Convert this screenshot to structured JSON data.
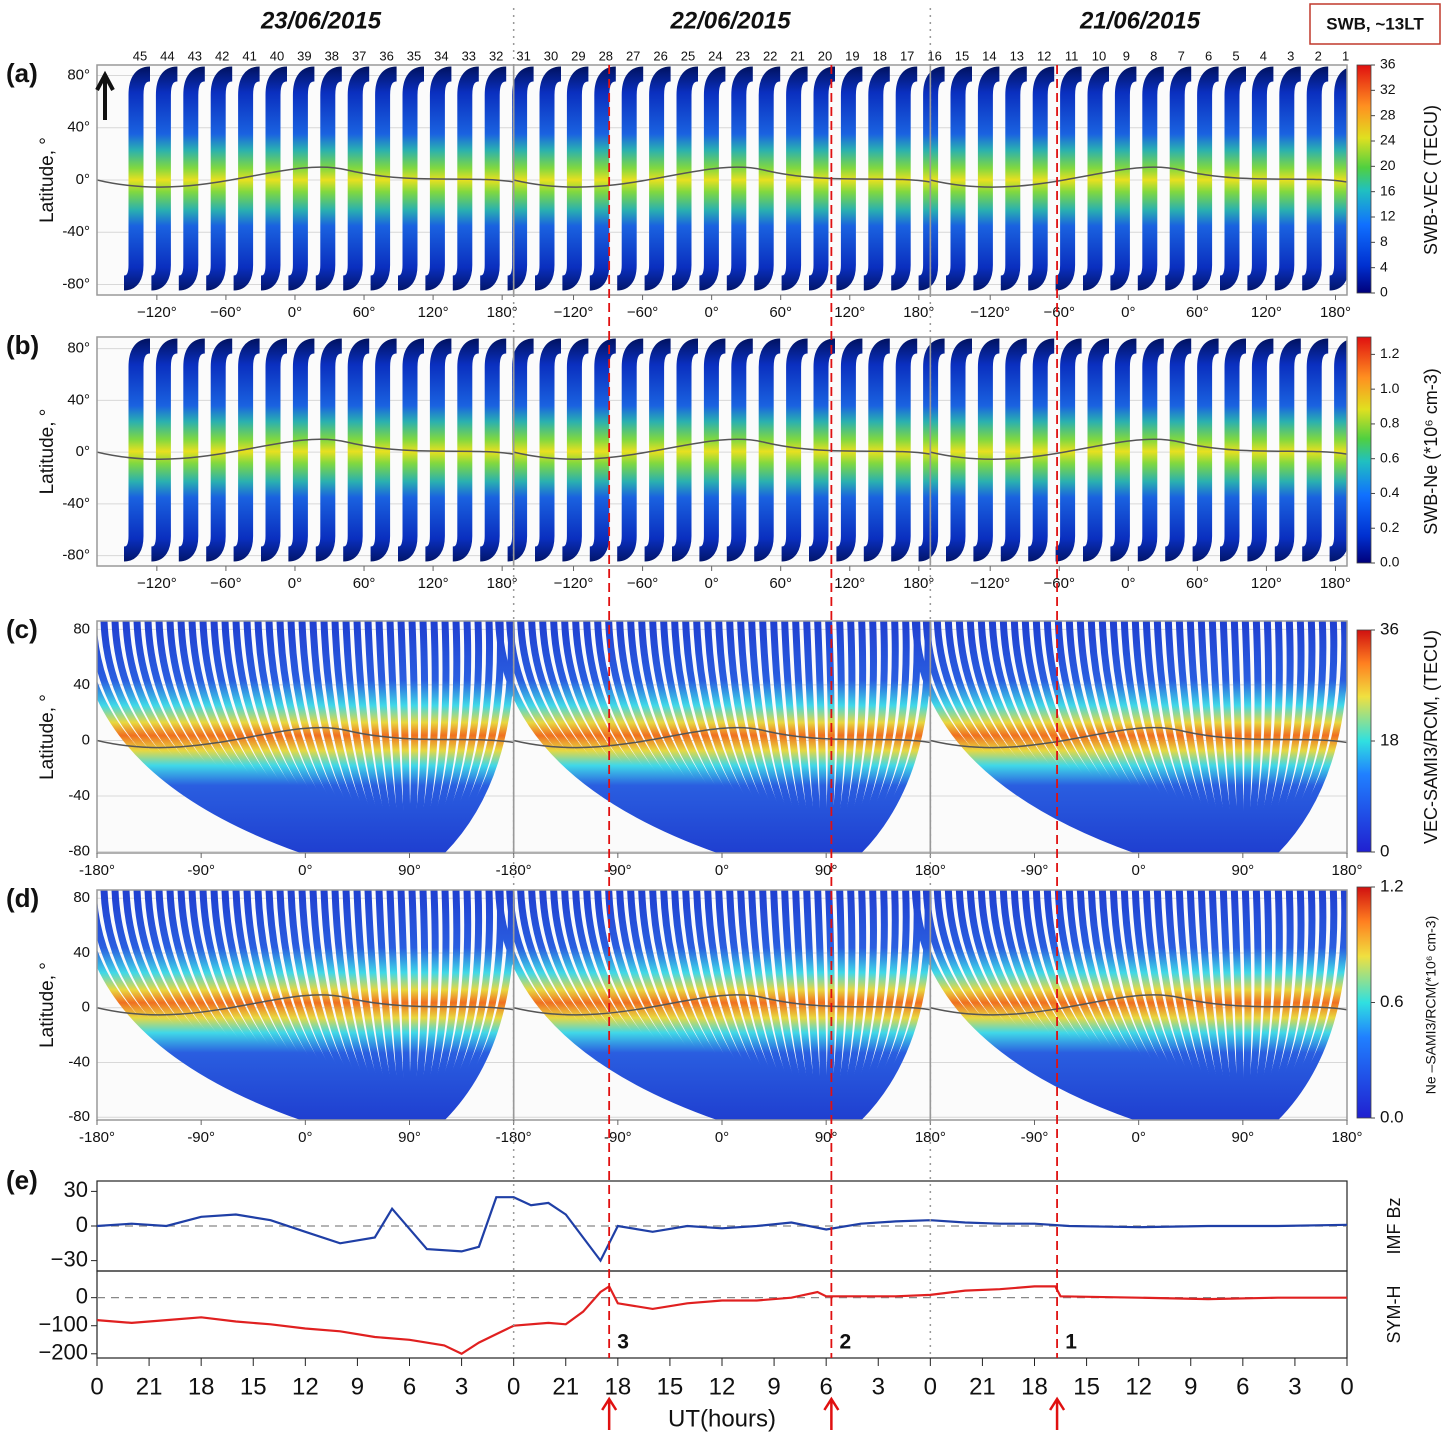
{
  "header": {
    "dates": [
      "23/06/2015",
      "22/06/2015",
      "21/06/2015"
    ],
    "note": "SWB, ~13LT",
    "orbits": [
      45,
      44,
      43,
      42,
      41,
      40,
      39,
      38,
      37,
      36,
      35,
      34,
      33,
      32,
      31,
      30,
      29,
      28,
      27,
      26,
      25,
      24,
      23,
      22,
      21,
      20,
      19,
      18,
      17,
      16,
      15,
      14,
      13,
      12,
      11,
      10,
      9,
      8,
      7,
      6,
      5,
      4,
      3,
      2,
      1
    ]
  },
  "chart_data": [
    {
      "type": "swath-map",
      "panel": "(a)",
      "ylabel": "Latitude, °",
      "ylim": [
        -88,
        88
      ],
      "yticks": [
        {
          "value": 80,
          "label": "80°"
        },
        {
          "value": 40,
          "label": "40°"
        },
        {
          "value": 0,
          "label": "0°"
        },
        {
          "value": -40,
          "label": "-40°"
        },
        {
          "value": -80,
          "label": "-80°"
        }
      ],
      "maps": [
        {
          "xlim": [
            -172,
            190
          ],
          "xticks": [
            {
              "value": -120,
              "label": "−120°"
            },
            {
              "value": -60,
              "label": "−60°"
            },
            {
              "value": 0,
              "label": "0°"
            },
            {
              "value": 60,
              "label": "60°"
            },
            {
              "value": 120,
              "label": "120°"
            },
            {
              "value": 180,
              "label": "180°"
            }
          ]
        },
        {
          "xlim": [
            -172,
            190
          ],
          "xticks": [
            {
              "value": -120,
              "label": "−120°"
            },
            {
              "value": -60,
              "label": "−60°"
            },
            {
              "value": 0,
              "label": "0°"
            },
            {
              "value": 60,
              "label": "60°"
            },
            {
              "value": 120,
              "label": "120°"
            },
            {
              "value": 180,
              "label": "180°"
            }
          ]
        },
        {
          "xlim": [
            -172,
            190
          ],
          "xticks": [
            {
              "value": -120,
              "label": "−120°"
            },
            {
              "value": -60,
              "label": "−60°"
            },
            {
              "value": 0,
              "label": "0°"
            },
            {
              "value": 60,
              "label": "60°"
            },
            {
              "value": 120,
              "label": "120°"
            },
            {
              "value": 180,
              "label": "180°"
            }
          ]
        }
      ],
      "colorbar": {
        "label": "SWB-VEC (TECU)",
        "clim": [
          0,
          36
        ],
        "ticks": [
          0,
          4,
          8,
          12,
          16,
          20,
          24,
          28,
          32,
          36
        ]
      }
    },
    {
      "type": "swath-map",
      "panel": "(b)",
      "ylabel": "Latitude, °",
      "ylim": [
        -88,
        89
      ],
      "yticks": [
        {
          "value": 80,
          "label": "80°"
        },
        {
          "value": 40,
          "label": "40°"
        },
        {
          "value": 0,
          "label": "0°"
        },
        {
          "value": -40,
          "label": "-40°"
        },
        {
          "value": -80,
          "label": "-80°"
        }
      ],
      "maps": [
        {
          "xlim": [
            -172,
            190
          ],
          "xticks": [
            {
              "value": -120,
              "label": "−120°"
            },
            {
              "value": -60,
              "label": "−60°"
            },
            {
              "value": 0,
              "label": "0°"
            },
            {
              "value": 60,
              "label": "60°"
            },
            {
              "value": 120,
              "label": "120°"
            },
            {
              "value": 180,
              "label": "180°"
            }
          ]
        },
        {
          "xlim": [
            -172,
            190
          ],
          "xticks": [
            {
              "value": -120,
              "label": "−120°"
            },
            {
              "value": -60,
              "label": "−60°"
            },
            {
              "value": 0,
              "label": "0°"
            },
            {
              "value": 60,
              "label": "60°"
            },
            {
              "value": 120,
              "label": "120°"
            },
            {
              "value": 180,
              "label": "180°"
            }
          ]
        },
        {
          "xlim": [
            -172,
            190
          ],
          "xticks": [
            {
              "value": -120,
              "label": "−120°"
            },
            {
              "value": -60,
              "label": "−60°"
            },
            {
              "value": 0,
              "label": "0°"
            },
            {
              "value": 60,
              "label": "60°"
            },
            {
              "value": 120,
              "label": "120°"
            },
            {
              "value": 180,
              "label": "180°"
            }
          ]
        }
      ],
      "colorbar": {
        "label": "SWB-Ne (*10⁶ cm-3)",
        "clim": [
          0,
          1.3
        ],
        "ticks": [
          {
            "value": 0,
            "label": "0.0"
          },
          0.2,
          0.4,
          0.6,
          0.8,
          {
            "value": 1,
            "label": "1.0"
          },
          1.2
        ]
      }
    },
    {
      "type": "track-map",
      "panel": "(c)",
      "ylabel": "Latitude, °",
      "ylim": [
        -81,
        86
      ],
      "yticks": [
        80,
        40,
        0,
        -40,
        -80
      ],
      "maps": [
        {
          "xlim": [
            -180,
            180
          ],
          "xticks": [
            {
              "value": -180,
              "label": "-180°"
            },
            {
              "value": -90,
              "label": "-90°"
            },
            {
              "value": 0,
              "label": "0°"
            },
            {
              "value": 90,
              "label": "90°"
            }
          ]
        },
        {
          "xlim": [
            -180,
            180
          ],
          "xticks": [
            {
              "value": -180,
              "label": "-180°"
            },
            {
              "value": -90,
              "label": "-90°"
            },
            {
              "value": 0,
              "label": "0°"
            },
            {
              "value": 90,
              "label": "90°"
            },
            {
              "value": 180,
              "label": "180°"
            }
          ]
        },
        {
          "xlim": [
            -180,
            180
          ],
          "xticks": [
            {
              "value": -90,
              "label": "-90°"
            },
            {
              "value": 0,
              "label": "0°"
            },
            {
              "value": 90,
              "label": "90°"
            },
            {
              "value": 180,
              "label": "180°"
            }
          ]
        }
      ],
      "colorbar": {
        "label": "VEC-SAMI3/RCM, (TECU)",
        "clim": [
          0,
          36
        ],
        "ticks": [
          0,
          18,
          36
        ]
      }
    },
    {
      "type": "track-map",
      "panel": "(d)",
      "ylabel": "Latitude, °",
      "ylim": [
        -82,
        86
      ],
      "yticks": [
        80,
        40,
        0,
        -40,
        -80
      ],
      "maps": [
        {
          "xlim": [
            -180,
            180
          ],
          "xticks": [
            {
              "value": -180,
              "label": "-180°"
            },
            {
              "value": -90,
              "label": "-90°"
            },
            {
              "value": 0,
              "label": "0°"
            },
            {
              "value": 90,
              "label": "90°"
            }
          ]
        },
        {
          "xlim": [
            -180,
            180
          ],
          "xticks": [
            {
              "value": -180,
              "label": "-180°"
            },
            {
              "value": -90,
              "label": "-90°"
            },
            {
              "value": 0,
              "label": "0°"
            },
            {
              "value": 90,
              "label": "90°"
            },
            {
              "value": 180,
              "label": "180°"
            }
          ]
        },
        {
          "xlim": [
            -180,
            180
          ],
          "xticks": [
            {
              "value": -90,
              "label": "-90°"
            },
            {
              "value": 0,
              "label": "0°"
            },
            {
              "value": 90,
              "label": "90°"
            },
            {
              "value": 180,
              "label": "180°"
            }
          ]
        }
      ],
      "colorbar": {
        "label": "Ne –SAMI3/RCM(*10⁶ cm-3)",
        "clim": [
          0,
          1.2
        ],
        "ticks": [
          {
            "value": 0,
            "label": "0.0"
          },
          0.6,
          1.2
        ]
      }
    },
    {
      "type": "line",
      "panel": "(e)",
      "xlabel": "UT(hours)",
      "xlim": [
        72,
        0
      ],
      "xticks": [
        {
          "value": 72,
          "label": "0"
        },
        {
          "value": 69,
          "label": "21"
        },
        {
          "value": 66,
          "label": "18"
        },
        {
          "value": 63,
          "label": "15"
        },
        {
          "value": 60,
          "label": "12"
        },
        {
          "value": 57,
          "label": "9"
        },
        {
          "value": 54,
          "label": "6"
        },
        {
          "value": 51,
          "label": "3"
        },
        {
          "value": 48,
          "label": "0"
        },
        {
          "value": 45,
          "label": "21"
        },
        {
          "value": 42,
          "label": "18"
        },
        {
          "value": 39,
          "label": "15"
        },
        {
          "value": 36,
          "label": "12"
        },
        {
          "value": 33,
          "label": "9"
        },
        {
          "value": 30,
          "label": "6"
        },
        {
          "value": 27,
          "label": "3"
        },
        {
          "value": 24,
          "label": "0"
        },
        {
          "value": 21,
          "label": "21"
        },
        {
          "value": 18,
          "label": "18"
        },
        {
          "value": 15,
          "label": "15"
        },
        {
          "value": 12,
          "label": "12"
        },
        {
          "value": 9,
          "label": "9"
        },
        {
          "value": 6,
          "label": "6"
        },
        {
          "value": 3,
          "label": "3"
        },
        0
      ],
      "series": [
        {
          "name": "IMF Bz",
          "color": "#1f3fa6",
          "ylim": [
            -39,
            39
          ],
          "yticks": [
            30,
            0,
            {
              "value": -30,
              "label": "−30"
            }
          ],
          "x": [
            72,
            70,
            68,
            66,
            64,
            62,
            60,
            58,
            56,
            55,
            53,
            51,
            50,
            49,
            48,
            47,
            46,
            45,
            44,
            43,
            42,
            40,
            38,
            36,
            34,
            32,
            30,
            28,
            26,
            24,
            22,
            20,
            18,
            16,
            12,
            8,
            4,
            0
          ],
          "values": [
            0,
            2,
            0,
            8,
            10,
            5,
            -5,
            -15,
            -10,
            15,
            -20,
            -22,
            -18,
            25,
            25,
            18,
            20,
            10,
            -10,
            -30,
            0,
            -5,
            0,
            -2,
            0,
            3,
            -3,
            2,
            4,
            5,
            3,
            2,
            2,
            0,
            -1,
            0,
            0,
            1
          ]
        },
        {
          "name": "SYM-H",
          "color": "#e02020",
          "ylim": [
            -215,
            95
          ],
          "yticks": [
            0,
            {
              "value": -100,
              "label": "−100"
            },
            {
              "value": -200,
              "label": "−200"
            }
          ],
          "x": [
            72,
            70,
            68,
            66,
            64,
            62,
            60,
            58,
            56,
            54,
            52,
            51,
            50,
            49,
            48,
            46,
            45,
            44,
            43,
            42.5,
            42,
            40,
            38,
            36,
            34,
            32,
            30.5,
            30,
            28,
            26,
            24,
            22,
            20,
            18,
            16.8,
            16.5,
            12,
            8,
            4,
            0
          ],
          "values": [
            -80,
            -90,
            -80,
            -70,
            -85,
            -95,
            -110,
            -120,
            -140,
            -150,
            -170,
            -200,
            -160,
            -130,
            -100,
            -90,
            -95,
            -50,
            20,
            40,
            -20,
            -40,
            -20,
            -10,
            -10,
            0,
            20,
            5,
            5,
            5,
            10,
            25,
            30,
            40,
            40,
            5,
            0,
            -5,
            0,
            0
          ]
        }
      ],
      "events": [
        {
          "label": "3",
          "x": 42.5
        },
        {
          "label": "2",
          "x": 29.7
        },
        {
          "label": "1",
          "x": 16.7
        }
      ]
    }
  ]
}
